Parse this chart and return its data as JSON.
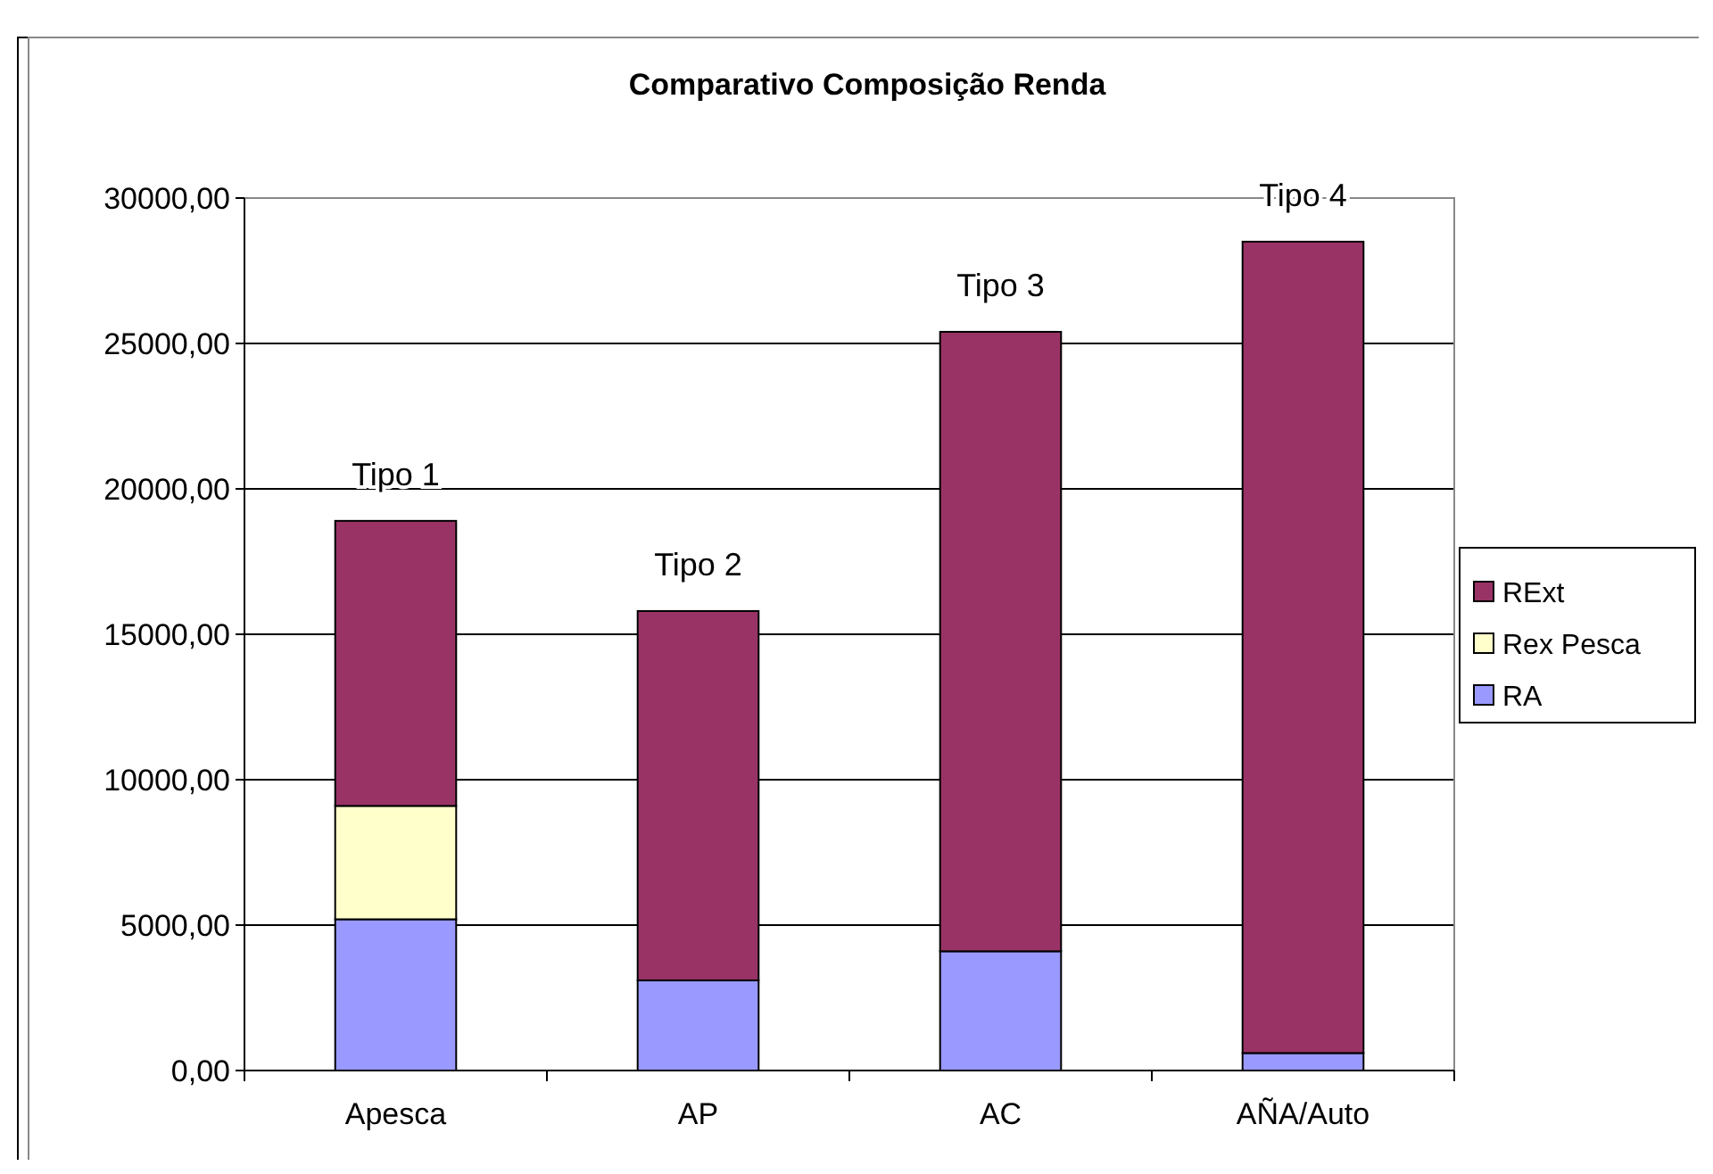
{
  "chart_data": {
    "type": "bar",
    "title": "Comparativo Composição Renda",
    "categories": [
      "Apesca",
      "AP",
      "AC",
      "AÑA/Auto"
    ],
    "stacked": true,
    "series": [
      {
        "name": "RA",
        "color": "#9999ff",
        "values": [
          5200,
          3100,
          4100,
          600
        ]
      },
      {
        "name": "Rex Pesca",
        "color": "#ffffcc",
        "values": [
          3900,
          0,
          0,
          0
        ]
      },
      {
        "name": "RExt",
        "color": "#993366",
        "values": [
          9800,
          12700,
          21300,
          27900
        ]
      }
    ],
    "ylim": [
      0,
      30000
    ],
    "yticks": [
      {
        "value": 0,
        "label": "0,00"
      },
      {
        "value": 5000,
        "label": "5000,00"
      },
      {
        "value": 10000,
        "label": "10000,00"
      },
      {
        "value": 15000,
        "label": "15000,00"
      },
      {
        "value": 20000,
        "label": "20000,00"
      },
      {
        "value": 25000,
        "label": "25000,00"
      },
      {
        "value": 30000,
        "label": "30000,00"
      }
    ],
    "grid": "y",
    "legend": "right",
    "annotations": [
      {
        "text": "Tipo 1",
        "x": "Apesca",
        "y": 18900
      },
      {
        "text": "Tipo 2",
        "x": "AP",
        "y": 15800
      },
      {
        "text": "Tipo 3",
        "x": "AC",
        "y": 25400
      },
      {
        "text": "Tipo 4",
        "x": "AÑA/Auto",
        "y": 28500
      }
    ]
  }
}
